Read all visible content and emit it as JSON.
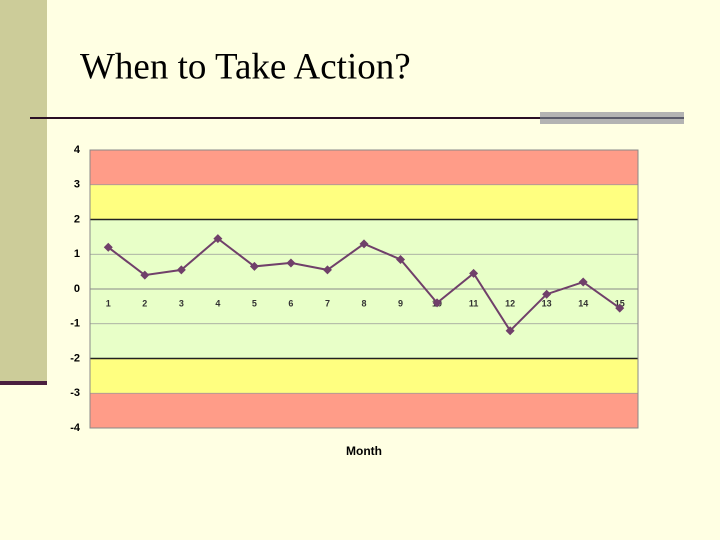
{
  "slide": {
    "title": "When to Take Action?"
  },
  "chart_data": {
    "type": "line",
    "x_label": "Month",
    "categories": [
      "1",
      "2",
      "3",
      "4",
      "5",
      "6",
      "7",
      "8",
      "9",
      "10",
      "11",
      "12",
      "13",
      "14",
      "15"
    ],
    "series": [
      {
        "color": "#70406a",
        "values": [
          1.2,
          0.4,
          0.55,
          1.45,
          0.65,
          0.75,
          0.55,
          1.3,
          0.85,
          -0.4,
          0.45,
          -1.2,
          -0.15,
          0.2,
          -0.55
        ]
      }
    ],
    "ylim": [
      -4,
      4
    ],
    "yticks": [
      -4,
      -3,
      -2,
      -1,
      0,
      1,
      2,
      3,
      4
    ],
    "grid": true,
    "bands": [
      {
        "from": 3,
        "to": 4,
        "color": "#ff9c88"
      },
      {
        "from": 2,
        "to": 3,
        "color": "#ffff80"
      },
      {
        "from": -2,
        "to": 2,
        "color": "#e8ffc8"
      },
      {
        "from": -3,
        "to": -2,
        "color": "#ffff80"
      },
      {
        "from": -4,
        "to": -3,
        "color": "#ff9c88"
      }
    ],
    "limit_lines": [
      -2,
      2
    ]
  }
}
